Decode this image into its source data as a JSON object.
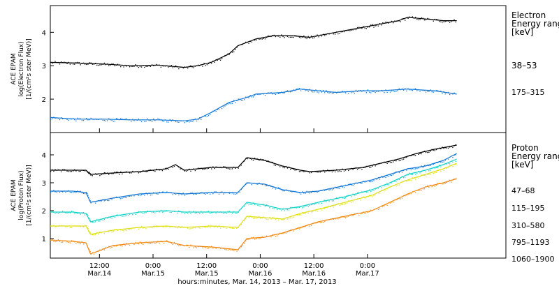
{
  "chart_data": [
    {
      "type": "scatter",
      "panel": "electron",
      "ylabel_lines": [
        "ACE EPAM",
        "log(Electron Flux)",
        "[1/(cm²s ster MeV)]"
      ],
      "ylim": [
        1,
        4.8
      ],
      "yticks": [
        2,
        3,
        4
      ],
      "legend_title": [
        "Electron",
        "Energy ranges",
        "[keV]"
      ],
      "legend_placement": "right",
      "series": [
        {
          "name": "38–53",
          "color": "#000000",
          "points": [
            [
              0,
              3.1
            ],
            [
              6,
              3.08
            ],
            [
              12,
              3.05
            ],
            [
              18,
              3.0
            ],
            [
              24,
              3.02
            ],
            [
              30,
              2.95
            ],
            [
              33,
              3.0
            ],
            [
              36,
              3.1
            ],
            [
              40,
              3.35
            ],
            [
              42,
              3.6
            ],
            [
              46,
              3.8
            ],
            [
              50,
              3.9
            ],
            [
              54,
              3.9
            ],
            [
              58,
              3.85
            ],
            [
              62,
              3.95
            ],
            [
              66,
              4.05
            ],
            [
              70,
              4.15
            ],
            [
              74,
              4.25
            ],
            [
              78,
              4.35
            ],
            [
              80,
              4.45
            ],
            [
              84,
              4.4
            ],
            [
              88,
              4.35
            ],
            [
              91,
              4.35
            ]
          ]
        },
        {
          "name": "175–315",
          "color": "#1478d4",
          "points": [
            [
              0,
              1.45
            ],
            [
              6,
              1.4
            ],
            [
              12,
              1.4
            ],
            [
              18,
              1.38
            ],
            [
              24,
              1.38
            ],
            [
              30,
              1.35
            ],
            [
              33,
              1.4
            ],
            [
              36,
              1.6
            ],
            [
              40,
              1.9
            ],
            [
              44,
              2.05
            ],
            [
              46,
              2.15
            ],
            [
              52,
              2.2
            ],
            [
              56,
              2.3
            ],
            [
              60,
              2.25
            ],
            [
              64,
              2.2
            ],
            [
              70,
              2.25
            ],
            [
              74,
              2.25
            ],
            [
              80,
              2.3
            ],
            [
              86,
              2.25
            ],
            [
              91,
              2.15
            ]
          ]
        }
      ]
    },
    {
      "type": "scatter",
      "panel": "proton",
      "ylabel_lines": [
        "ACE EPAM",
        "log(Proton Flux)",
        "[1/(cm²s ster MeV)]"
      ],
      "ylim": [
        0.3,
        4.8
      ],
      "yticks": [
        1,
        2,
        3,
        4
      ],
      "legend_title": [
        "Proton",
        "Energy ranges",
        "[keV]"
      ],
      "legend_placement": "right",
      "series": [
        {
          "name": "47–68",
          "color": "#000000",
          "points": [
            [
              0,
              3.45
            ],
            [
              5,
              3.45
            ],
            [
              8,
              3.45
            ],
            [
              9,
              3.3
            ],
            [
              14,
              3.35
            ],
            [
              20,
              3.4
            ],
            [
              26,
              3.5
            ],
            [
              28,
              3.65
            ],
            [
              30,
              3.45
            ],
            [
              36,
              3.55
            ],
            [
              42,
              3.55
            ],
            [
              44,
              3.9
            ],
            [
              48,
              3.8
            ],
            [
              52,
              3.6
            ],
            [
              56,
              3.45
            ],
            [
              58,
              3.4
            ],
            [
              64,
              3.45
            ],
            [
              70,
              3.55
            ],
            [
              74,
              3.7
            ],
            [
              78,
              3.85
            ],
            [
              82,
              4.05
            ],
            [
              86,
              4.2
            ],
            [
              91,
              4.35
            ]
          ]
        },
        {
          "name": "115–195",
          "color": "#1478d4",
          "points": [
            [
              0,
              2.7
            ],
            [
              5,
              2.7
            ],
            [
              8,
              2.65
            ],
            [
              9,
              2.3
            ],
            [
              14,
              2.45
            ],
            [
              20,
              2.6
            ],
            [
              26,
              2.65
            ],
            [
              30,
              2.6
            ],
            [
              36,
              2.65
            ],
            [
              42,
              2.65
            ],
            [
              44,
              3.0
            ],
            [
              48,
              2.95
            ],
            [
              52,
              2.75
            ],
            [
              56,
              2.65
            ],
            [
              60,
              2.7
            ],
            [
              66,
              2.9
            ],
            [
              72,
              3.1
            ],
            [
              76,
              3.3
            ],
            [
              80,
              3.5
            ],
            [
              84,
              3.6
            ],
            [
              88,
              3.8
            ],
            [
              91,
              4.05
            ]
          ]
        },
        {
          "name": "310–580",
          "color": "#17d2c8",
          "points": [
            [
              0,
              1.95
            ],
            [
              5,
              1.95
            ],
            [
              8,
              1.9
            ],
            [
              9,
              1.6
            ],
            [
              14,
              1.8
            ],
            [
              20,
              1.95
            ],
            [
              26,
              2.0
            ],
            [
              30,
              1.95
            ],
            [
              36,
              1.95
            ],
            [
              42,
              1.95
            ],
            [
              44,
              2.3
            ],
            [
              48,
              2.2
            ],
            [
              52,
              2.05
            ],
            [
              56,
              2.15
            ],
            [
              60,
              2.3
            ],
            [
              66,
              2.5
            ],
            [
              72,
              2.75
            ],
            [
              76,
              3.0
            ],
            [
              80,
              3.3
            ],
            [
              84,
              3.45
            ],
            [
              88,
              3.65
            ],
            [
              91,
              3.85
            ]
          ]
        },
        {
          "name": "795–1193",
          "color": "#dfe01a",
          "points": [
            [
              0,
              1.45
            ],
            [
              5,
              1.45
            ],
            [
              8,
              1.45
            ],
            [
              9,
              1.15
            ],
            [
              14,
              1.3
            ],
            [
              20,
              1.4
            ],
            [
              26,
              1.45
            ],
            [
              30,
              1.4
            ],
            [
              36,
              1.45
            ],
            [
              42,
              1.4
            ],
            [
              44,
              1.8
            ],
            [
              48,
              1.75
            ],
            [
              52,
              1.7
            ],
            [
              56,
              1.9
            ],
            [
              60,
              2.05
            ],
            [
              66,
              2.3
            ],
            [
              72,
              2.55
            ],
            [
              76,
              2.85
            ],
            [
              80,
              3.1
            ],
            [
              84,
              3.3
            ],
            [
              88,
              3.5
            ],
            [
              91,
              3.7
            ]
          ]
        },
        {
          "name": "1060–1900",
          "color": "#f08a14",
          "points": [
            [
              0,
              0.95
            ],
            [
              5,
              0.9
            ],
            [
              8,
              0.85
            ],
            [
              9,
              0.45
            ],
            [
              14,
              0.75
            ],
            [
              20,
              0.85
            ],
            [
              26,
              0.9
            ],
            [
              30,
              0.75
            ],
            [
              36,
              0.7
            ],
            [
              42,
              0.6
            ],
            [
              44,
              1.0
            ],
            [
              48,
              1.05
            ],
            [
              52,
              1.2
            ],
            [
              56,
              1.4
            ],
            [
              60,
              1.6
            ],
            [
              66,
              1.8
            ],
            [
              72,
              2.0
            ],
            [
              76,
              2.3
            ],
            [
              80,
              2.6
            ],
            [
              84,
              2.85
            ],
            [
              88,
              3.0
            ],
            [
              91,
              3.15
            ]
          ]
        }
      ]
    }
  ],
  "x_axis": {
    "range_hours": [
      0,
      102
    ],
    "ticks": [
      {
        "hour": 11,
        "line1": "12:00",
        "line2": "Mar.14"
      },
      {
        "hour": 23,
        "line1": "0:00",
        "line2": "Mar.15"
      },
      {
        "hour": 35,
        "line1": "12:00",
        "line2": "Mar.15"
      },
      {
        "hour": 47,
        "line1": "0:00",
        "line2": "Mar.16"
      },
      {
        "hour": 59,
        "line1": "12:00",
        "line2": "Mar.16"
      },
      {
        "hour": 71,
        "line1": "0:00",
        "line2": "Mar.17"
      }
    ],
    "label": "hours:minutes, Mar. 14, 2013 – Mar. 17, 2013"
  }
}
